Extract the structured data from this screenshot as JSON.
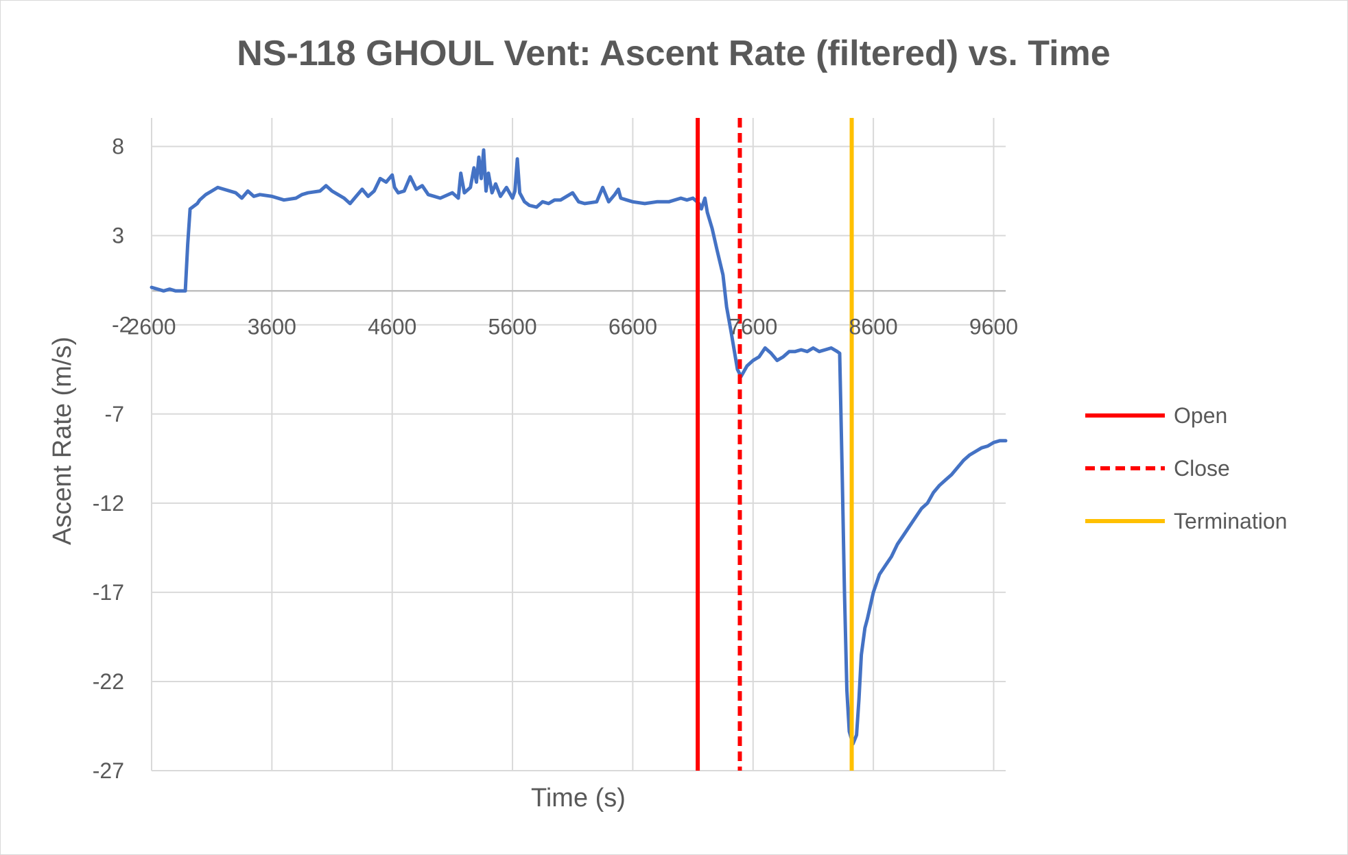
{
  "chart_data": {
    "type": "line",
    "title": "NS-118 GHOUL Vent: Ascent Rate (filtered) vs. Time",
    "xlabel": "Time (s)",
    "ylabel": "Ascent Rate (m/s)",
    "xlim": [
      2600,
      9700
    ],
    "ylim": [
      -27,
      10
    ],
    "x_ticks": [
      2600,
      3600,
      4600,
      5600,
      6600,
      7600,
      8600,
      9600
    ],
    "x_tick_labels": [
      "2600",
      "3600",
      "4600",
      "5600",
      "6600",
      "7600",
      "8600",
      "9600"
    ],
    "y_ticks": [
      8,
      3,
      -2,
      -7,
      -12,
      -17,
      -22,
      -27
    ],
    "y_tick_labels": [
      "8",
      "3",
      "-2",
      "-7",
      "-12",
      "-17",
      "-22",
      "-27"
    ],
    "grid": true,
    "legend_position": "right",
    "series": [
      {
        "color": "#4472C4",
        "points": [
          [
            2600,
            0.1
          ],
          [
            2700,
            -0.1
          ],
          [
            2750,
            0.0
          ],
          [
            2800,
            -0.1
          ],
          [
            2880,
            -0.1
          ],
          [
            2900,
            2.5
          ],
          [
            2920,
            4.5
          ],
          [
            2980,
            4.8
          ],
          [
            3000,
            5.0
          ],
          [
            3050,
            5.3
          ],
          [
            3100,
            5.5
          ],
          [
            3150,
            5.7
          ],
          [
            3200,
            5.6
          ],
          [
            3300,
            5.4
          ],
          [
            3350,
            5.1
          ],
          [
            3400,
            5.5
          ],
          [
            3450,
            5.2
          ],
          [
            3500,
            5.3
          ],
          [
            3600,
            5.2
          ],
          [
            3700,
            5.0
          ],
          [
            3800,
            5.1
          ],
          [
            3850,
            5.3
          ],
          [
            3900,
            5.4
          ],
          [
            4000,
            5.5
          ],
          [
            4050,
            5.8
          ],
          [
            4100,
            5.5
          ],
          [
            4150,
            5.3
          ],
          [
            4200,
            5.1
          ],
          [
            4250,
            4.8
          ],
          [
            4300,
            5.2
          ],
          [
            4350,
            5.6
          ],
          [
            4400,
            5.2
          ],
          [
            4450,
            5.5
          ],
          [
            4500,
            6.2
          ],
          [
            4550,
            6.0
          ],
          [
            4600,
            6.4
          ],
          [
            4620,
            5.7
          ],
          [
            4650,
            5.4
          ],
          [
            4700,
            5.5
          ],
          [
            4750,
            6.3
          ],
          [
            4800,
            5.6
          ],
          [
            4850,
            5.8
          ],
          [
            4900,
            5.3
          ],
          [
            5000,
            5.1
          ],
          [
            5100,
            5.4
          ],
          [
            5150,
            5.1
          ],
          [
            5170,
            6.5
          ],
          [
            5200,
            5.4
          ],
          [
            5250,
            5.7
          ],
          [
            5280,
            6.8
          ],
          [
            5300,
            6.0
          ],
          [
            5320,
            7.4
          ],
          [
            5340,
            6.2
          ],
          [
            5360,
            7.8
          ],
          [
            5380,
            5.5
          ],
          [
            5400,
            6.5
          ],
          [
            5430,
            5.4
          ],
          [
            5460,
            5.9
          ],
          [
            5500,
            5.2
          ],
          [
            5550,
            5.7
          ],
          [
            5600,
            5.1
          ],
          [
            5620,
            5.5
          ],
          [
            5640,
            7.3
          ],
          [
            5660,
            5.4
          ],
          [
            5700,
            4.9
          ],
          [
            5740,
            4.7
          ],
          [
            5800,
            4.6
          ],
          [
            5850,
            4.9
          ],
          [
            5900,
            4.8
          ],
          [
            5950,
            5.0
          ],
          [
            6000,
            5.0
          ],
          [
            6100,
            5.4
          ],
          [
            6150,
            4.9
          ],
          [
            6200,
            4.8
          ],
          [
            6300,
            4.9
          ],
          [
            6350,
            5.7
          ],
          [
            6400,
            4.9
          ],
          [
            6450,
            5.3
          ],
          [
            6480,
            5.6
          ],
          [
            6500,
            5.1
          ],
          [
            6550,
            5.0
          ],
          [
            6600,
            4.9
          ],
          [
            6700,
            4.8
          ],
          [
            6800,
            4.9
          ],
          [
            6900,
            4.9
          ],
          [
            7000,
            5.1
          ],
          [
            7050,
            5.0
          ],
          [
            7100,
            5.1
          ],
          [
            7150,
            4.8
          ],
          [
            7170,
            4.5
          ],
          [
            7200,
            5.1
          ],
          [
            7220,
            4.3
          ],
          [
            7260,
            3.4
          ],
          [
            7300,
            2.2
          ],
          [
            7350,
            0.8
          ],
          [
            7380,
            -1.0
          ],
          [
            7420,
            -2.5
          ],
          [
            7440,
            -3.3
          ],
          [
            7470,
            -4.5
          ],
          [
            7500,
            -4.9
          ],
          [
            7550,
            -4.3
          ],
          [
            7600,
            -4.0
          ],
          [
            7650,
            -3.8
          ],
          [
            7700,
            -3.3
          ],
          [
            7750,
            -3.6
          ],
          [
            7800,
            -4.0
          ],
          [
            7850,
            -3.8
          ],
          [
            7900,
            -3.5
          ],
          [
            7950,
            -3.5
          ],
          [
            8000,
            -3.4
          ],
          [
            8050,
            -3.5
          ],
          [
            8100,
            -3.3
          ],
          [
            8150,
            -3.5
          ],
          [
            8200,
            -3.4
          ],
          [
            8250,
            -3.3
          ],
          [
            8300,
            -3.5
          ],
          [
            8320,
            -3.6
          ],
          [
            8340,
            -10.0
          ],
          [
            8360,
            -17.0
          ],
          [
            8380,
            -22.5
          ],
          [
            8400,
            -24.8
          ],
          [
            8430,
            -25.5
          ],
          [
            8460,
            -25.0
          ],
          [
            8480,
            -23.0
          ],
          [
            8500,
            -20.5
          ],
          [
            8530,
            -19.0
          ],
          [
            8550,
            -18.5
          ],
          [
            8600,
            -17.0
          ],
          [
            8650,
            -16.0
          ],
          [
            8700,
            -15.5
          ],
          [
            8750,
            -15.0
          ],
          [
            8800,
            -14.3
          ],
          [
            8850,
            -13.8
          ],
          [
            8900,
            -13.3
          ],
          [
            8950,
            -12.8
          ],
          [
            9000,
            -12.3
          ],
          [
            9050,
            -12.0
          ],
          [
            9100,
            -11.4
          ],
          [
            9150,
            -11.0
          ],
          [
            9200,
            -10.7
          ],
          [
            9250,
            -10.4
          ],
          [
            9300,
            -10.0
          ],
          [
            9350,
            -9.6
          ],
          [
            9400,
            -9.3
          ],
          [
            9450,
            -9.1
          ],
          [
            9500,
            -8.9
          ],
          [
            9550,
            -8.8
          ],
          [
            9600,
            -8.6
          ],
          [
            9650,
            -8.5
          ],
          [
            9700,
            -8.5
          ]
        ]
      }
    ],
    "markers": [
      {
        "name": "Open",
        "x": 7140,
        "color": "#FF0000",
        "dash": "solid"
      },
      {
        "name": "Close",
        "x": 7490,
        "color": "#FF0000",
        "dash": "dashed"
      },
      {
        "name": "Termination",
        "x": 8420,
        "color": "#FFC000",
        "dash": "solid"
      }
    ]
  }
}
